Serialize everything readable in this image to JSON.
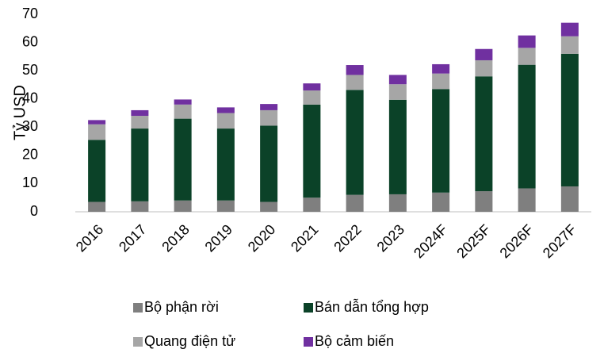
{
  "chart_data": {
    "type": "stacked_bar",
    "y_label": "Tỷ USD",
    "categories": [
      "2016",
      "2017",
      "2018",
      "2019",
      "2020",
      "2021",
      "2022",
      "2023",
      "2024F",
      "2025F",
      "2026F",
      "2027F"
    ],
    "series": [
      {
        "name": "Bộ phận rời",
        "color": "#7f7f7f",
        "values": [
          3.5,
          3.7,
          4,
          4,
          3.5,
          5,
          6,
          6.2,
          6.8,
          7.3,
          8.3,
          9
        ]
      },
      {
        "name": "Bán dẫn tổng hợp",
        "color": "#0b4228",
        "values": [
          22,
          25.8,
          29,
          25.5,
          27,
          33,
          37.2,
          33.5,
          36.7,
          40.7,
          43.8,
          47
        ]
      },
      {
        "name": "Quang điện tử",
        "color": "#a6a6a6",
        "values": [
          5.5,
          4.5,
          5,
          5.5,
          5.5,
          5,
          5.3,
          5.5,
          5.5,
          5.7,
          6,
          6.2
        ]
      },
      {
        "name": "Bộ cảm biến",
        "color": "#7030a0",
        "values": [
          1.5,
          2,
          1.8,
          2,
          2.2,
          2.5,
          3.5,
          3.3,
          3.3,
          4,
          4.4,
          4.8
        ]
      }
    ],
    "ylim": [
      0,
      70
    ],
    "yticks": [
      0,
      10,
      20,
      30,
      40,
      50,
      60,
      70
    ],
    "grid": false
  }
}
